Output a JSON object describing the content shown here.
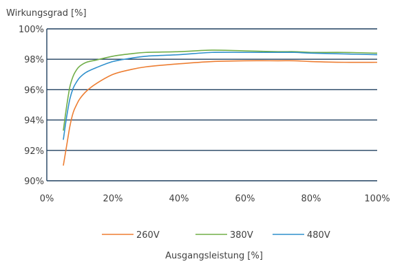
{
  "chart_data": {
    "type": "line",
    "title": "",
    "ylabel": "Wirkungsgrad [%]",
    "xlabel": "Ausgangsleistung [%]",
    "xlim": [
      0,
      100
    ],
    "ylim": [
      90,
      100
    ],
    "xticks": [
      0,
      20,
      40,
      60,
      80,
      100
    ],
    "yticks": [
      90,
      92,
      94,
      96,
      98,
      100
    ],
    "xtick_labels": [
      "0%",
      "20%",
      "40%",
      "60%",
      "80%",
      "100%"
    ],
    "ytick_labels": [
      "90%",
      "92%",
      "94%",
      "96%",
      "98%",
      "100%"
    ],
    "grid": "horizontal",
    "legend_position": "bottom",
    "series": [
      {
        "name": "260V",
        "color": "#ED7D31",
        "x": [
          5,
          6,
          7,
          8,
          9,
          10,
          12,
          15,
          20,
          25,
          30,
          40,
          50,
          60,
          70,
          75,
          80,
          90,
          100
        ],
        "y": [
          91.0,
          92.3,
          93.6,
          94.5,
          95.0,
          95.4,
          95.9,
          96.4,
          97.0,
          97.3,
          97.5,
          97.7,
          97.85,
          97.9,
          97.9,
          97.9,
          97.85,
          97.8,
          97.8
        ]
      },
      {
        "name": "380V",
        "color": "#70AD47",
        "x": [
          5,
          6,
          7,
          8,
          9,
          10,
          12,
          15,
          20,
          25,
          30,
          40,
          50,
          60,
          70,
          75,
          80,
          90,
          100
        ],
        "y": [
          93.3,
          94.9,
          96.2,
          96.9,
          97.3,
          97.55,
          97.8,
          97.95,
          98.2,
          98.35,
          98.45,
          98.5,
          98.6,
          98.55,
          98.5,
          98.5,
          98.45,
          98.45,
          98.4
        ]
      },
      {
        "name": "480V",
        "color": "#2E8FCC",
        "x": [
          5,
          6,
          7,
          8,
          9,
          10,
          12,
          15,
          20,
          25,
          30,
          40,
          50,
          60,
          70,
          75,
          80,
          90,
          100
        ],
        "y": [
          92.7,
          94.2,
          95.4,
          96.1,
          96.5,
          96.8,
          97.15,
          97.45,
          97.85,
          98.05,
          98.2,
          98.3,
          98.45,
          98.45,
          98.45,
          98.45,
          98.4,
          98.35,
          98.3
        ]
      }
    ]
  }
}
